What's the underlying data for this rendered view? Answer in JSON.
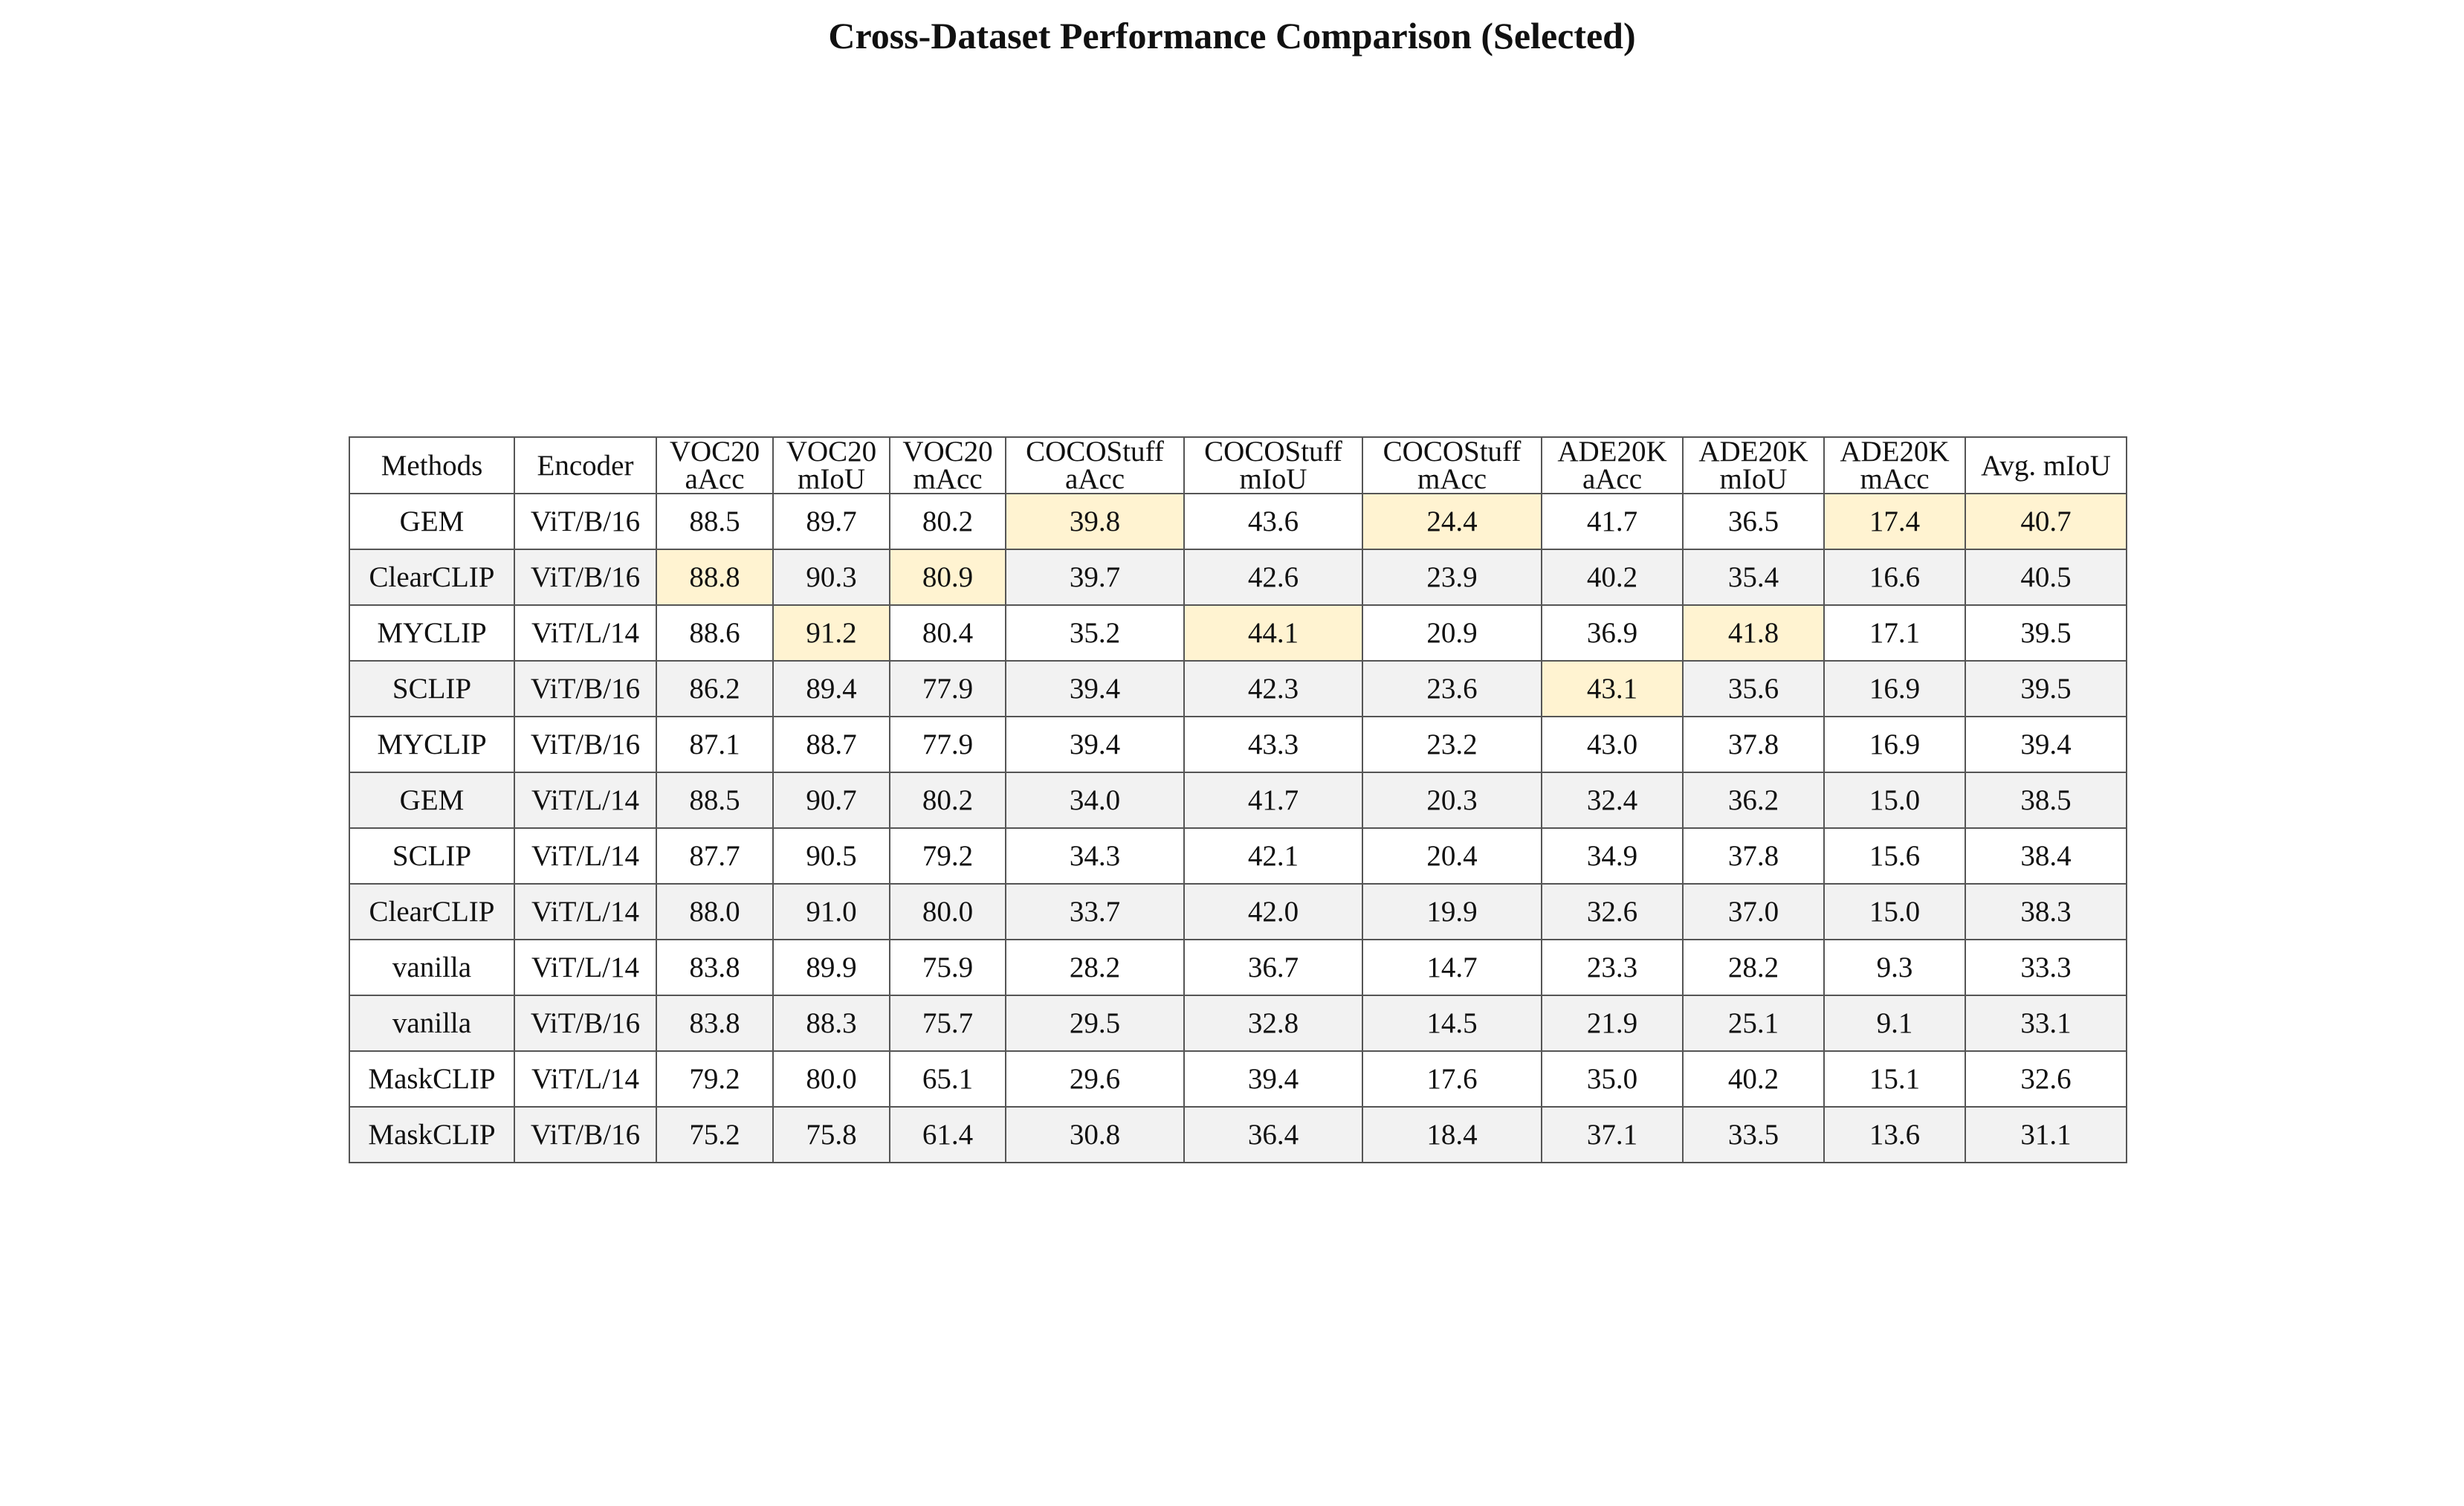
{
  "chart_data": {
    "type": "table",
    "title": "Cross-Dataset Performance Comparison (Selected)",
    "highlight_color": "#fff3d1",
    "stripe_color": "#f2f2f2",
    "columns": [
      [
        "Methods"
      ],
      [
        "Encoder"
      ],
      [
        "VOC20",
        "aAcc"
      ],
      [
        "VOC20",
        "mIoU"
      ],
      [
        "VOC20",
        "mAcc"
      ],
      [
        "COCOStuff",
        "aAcc"
      ],
      [
        "COCOStuff",
        "mIoU"
      ],
      [
        "COCOStuff",
        "mAcc"
      ],
      [
        "ADE20K",
        "aAcc"
      ],
      [
        "ADE20K",
        "mIoU"
      ],
      [
        "ADE20K",
        "mAcc"
      ],
      [
        "Avg. mIoU"
      ]
    ],
    "rows": [
      {
        "cells": [
          "GEM",
          "ViT/B/16",
          "88.5",
          "89.7",
          "80.2",
          "39.8",
          "43.6",
          "24.4",
          "41.7",
          "36.5",
          "17.4",
          "40.7"
        ],
        "highlight": [
          5,
          7,
          10,
          11
        ]
      },
      {
        "cells": [
          "ClearCLIP",
          "ViT/B/16",
          "88.8",
          "90.3",
          "80.9",
          "39.7",
          "42.6",
          "23.9",
          "40.2",
          "35.4",
          "16.6",
          "40.5"
        ],
        "highlight": [
          2,
          4
        ]
      },
      {
        "cells": [
          "MYCLIP",
          "ViT/L/14",
          "88.6",
          "91.2",
          "80.4",
          "35.2",
          "44.1",
          "20.9",
          "36.9",
          "41.8",
          "17.1",
          "39.5"
        ],
        "highlight": [
          3,
          6,
          9
        ]
      },
      {
        "cells": [
          "SCLIP",
          "ViT/B/16",
          "86.2",
          "89.4",
          "77.9",
          "39.4",
          "42.3",
          "23.6",
          "43.1",
          "35.6",
          "16.9",
          "39.5"
        ],
        "highlight": [
          8
        ]
      },
      {
        "cells": [
          "MYCLIP",
          "ViT/B/16",
          "87.1",
          "88.7",
          "77.9",
          "39.4",
          "43.3",
          "23.2",
          "43.0",
          "37.8",
          "16.9",
          "39.4"
        ],
        "highlight": []
      },
      {
        "cells": [
          "GEM",
          "ViT/L/14",
          "88.5",
          "90.7",
          "80.2",
          "34.0",
          "41.7",
          "20.3",
          "32.4",
          "36.2",
          "15.0",
          "38.5"
        ],
        "highlight": []
      },
      {
        "cells": [
          "SCLIP",
          "ViT/L/14",
          "87.7",
          "90.5",
          "79.2",
          "34.3",
          "42.1",
          "20.4",
          "34.9",
          "37.8",
          "15.6",
          "38.4"
        ],
        "highlight": []
      },
      {
        "cells": [
          "ClearCLIP",
          "ViT/L/14",
          "88.0",
          "91.0",
          "80.0",
          "33.7",
          "42.0",
          "19.9",
          "32.6",
          "37.0",
          "15.0",
          "38.3"
        ],
        "highlight": []
      },
      {
        "cells": [
          "vanilla",
          "ViT/L/14",
          "83.8",
          "89.9",
          "75.9",
          "28.2",
          "36.7",
          "14.7",
          "23.3",
          "28.2",
          "9.3",
          "33.3"
        ],
        "highlight": []
      },
      {
        "cells": [
          "vanilla",
          "ViT/B/16",
          "83.8",
          "88.3",
          "75.7",
          "29.5",
          "32.8",
          "14.5",
          "21.9",
          "25.1",
          "9.1",
          "33.1"
        ],
        "highlight": []
      },
      {
        "cells": [
          "MaskCLIP",
          "ViT/L/14",
          "79.2",
          "80.0",
          "65.1",
          "29.6",
          "39.4",
          "17.6",
          "35.0",
          "40.2",
          "15.1",
          "32.6"
        ],
        "highlight": []
      },
      {
        "cells": [
          "MaskCLIP",
          "ViT/B/16",
          "75.2",
          "75.8",
          "61.4",
          "30.8",
          "36.4",
          "18.4",
          "37.1",
          "33.5",
          "13.6",
          "31.1"
        ],
        "highlight": []
      }
    ]
  }
}
